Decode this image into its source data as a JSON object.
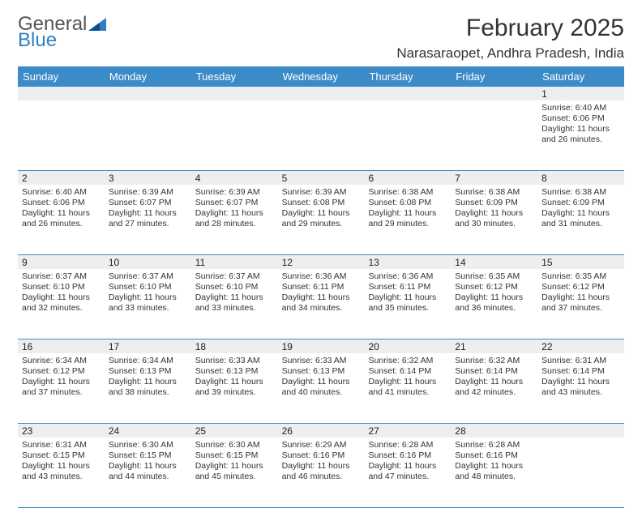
{
  "logo": {
    "word1": "General",
    "word2": "Blue"
  },
  "title": "February 2025",
  "location": "Narasaraopet, Andhra Pradesh, India",
  "header": {
    "bg": "#3b8bc8",
    "fg": "#ffffff"
  },
  "daynum_bg": "#eceeef",
  "border_color": "#3b8bc8",
  "weekdays": [
    "Sunday",
    "Monday",
    "Tuesday",
    "Wednesday",
    "Thursday",
    "Friday",
    "Saturday"
  ],
  "weeks": [
    {
      "nums": [
        "",
        "",
        "",
        "",
        "",
        "",
        "1"
      ],
      "cells": [
        null,
        null,
        null,
        null,
        null,
        null,
        {
          "sunrise": "Sunrise: 6:40 AM",
          "sunset": "Sunset: 6:06 PM",
          "day1": "Daylight: 11 hours",
          "day2": "and 26 minutes."
        }
      ]
    },
    {
      "nums": [
        "2",
        "3",
        "4",
        "5",
        "6",
        "7",
        "8"
      ],
      "cells": [
        {
          "sunrise": "Sunrise: 6:40 AM",
          "sunset": "Sunset: 6:06 PM",
          "day1": "Daylight: 11 hours",
          "day2": "and 26 minutes."
        },
        {
          "sunrise": "Sunrise: 6:39 AM",
          "sunset": "Sunset: 6:07 PM",
          "day1": "Daylight: 11 hours",
          "day2": "and 27 minutes."
        },
        {
          "sunrise": "Sunrise: 6:39 AM",
          "sunset": "Sunset: 6:07 PM",
          "day1": "Daylight: 11 hours",
          "day2": "and 28 minutes."
        },
        {
          "sunrise": "Sunrise: 6:39 AM",
          "sunset": "Sunset: 6:08 PM",
          "day1": "Daylight: 11 hours",
          "day2": "and 29 minutes."
        },
        {
          "sunrise": "Sunrise: 6:38 AM",
          "sunset": "Sunset: 6:08 PM",
          "day1": "Daylight: 11 hours",
          "day2": "and 29 minutes."
        },
        {
          "sunrise": "Sunrise: 6:38 AM",
          "sunset": "Sunset: 6:09 PM",
          "day1": "Daylight: 11 hours",
          "day2": "and 30 minutes."
        },
        {
          "sunrise": "Sunrise: 6:38 AM",
          "sunset": "Sunset: 6:09 PM",
          "day1": "Daylight: 11 hours",
          "day2": "and 31 minutes."
        }
      ]
    },
    {
      "nums": [
        "9",
        "10",
        "11",
        "12",
        "13",
        "14",
        "15"
      ],
      "cells": [
        {
          "sunrise": "Sunrise: 6:37 AM",
          "sunset": "Sunset: 6:10 PM",
          "day1": "Daylight: 11 hours",
          "day2": "and 32 minutes."
        },
        {
          "sunrise": "Sunrise: 6:37 AM",
          "sunset": "Sunset: 6:10 PM",
          "day1": "Daylight: 11 hours",
          "day2": "and 33 minutes."
        },
        {
          "sunrise": "Sunrise: 6:37 AM",
          "sunset": "Sunset: 6:10 PM",
          "day1": "Daylight: 11 hours",
          "day2": "and 33 minutes."
        },
        {
          "sunrise": "Sunrise: 6:36 AM",
          "sunset": "Sunset: 6:11 PM",
          "day1": "Daylight: 11 hours",
          "day2": "and 34 minutes."
        },
        {
          "sunrise": "Sunrise: 6:36 AM",
          "sunset": "Sunset: 6:11 PM",
          "day1": "Daylight: 11 hours",
          "day2": "and 35 minutes."
        },
        {
          "sunrise": "Sunrise: 6:35 AM",
          "sunset": "Sunset: 6:12 PM",
          "day1": "Daylight: 11 hours",
          "day2": "and 36 minutes."
        },
        {
          "sunrise": "Sunrise: 6:35 AM",
          "sunset": "Sunset: 6:12 PM",
          "day1": "Daylight: 11 hours",
          "day2": "and 37 minutes."
        }
      ]
    },
    {
      "nums": [
        "16",
        "17",
        "18",
        "19",
        "20",
        "21",
        "22"
      ],
      "cells": [
        {
          "sunrise": "Sunrise: 6:34 AM",
          "sunset": "Sunset: 6:12 PM",
          "day1": "Daylight: 11 hours",
          "day2": "and 37 minutes."
        },
        {
          "sunrise": "Sunrise: 6:34 AM",
          "sunset": "Sunset: 6:13 PM",
          "day1": "Daylight: 11 hours",
          "day2": "and 38 minutes."
        },
        {
          "sunrise": "Sunrise: 6:33 AM",
          "sunset": "Sunset: 6:13 PM",
          "day1": "Daylight: 11 hours",
          "day2": "and 39 minutes."
        },
        {
          "sunrise": "Sunrise: 6:33 AM",
          "sunset": "Sunset: 6:13 PM",
          "day1": "Daylight: 11 hours",
          "day2": "and 40 minutes."
        },
        {
          "sunrise": "Sunrise: 6:32 AM",
          "sunset": "Sunset: 6:14 PM",
          "day1": "Daylight: 11 hours",
          "day2": "and 41 minutes."
        },
        {
          "sunrise": "Sunrise: 6:32 AM",
          "sunset": "Sunset: 6:14 PM",
          "day1": "Daylight: 11 hours",
          "day2": "and 42 minutes."
        },
        {
          "sunrise": "Sunrise: 6:31 AM",
          "sunset": "Sunset: 6:14 PM",
          "day1": "Daylight: 11 hours",
          "day2": "and 43 minutes."
        }
      ]
    },
    {
      "nums": [
        "23",
        "24",
        "25",
        "26",
        "27",
        "28",
        ""
      ],
      "cells": [
        {
          "sunrise": "Sunrise: 6:31 AM",
          "sunset": "Sunset: 6:15 PM",
          "day1": "Daylight: 11 hours",
          "day2": "and 43 minutes."
        },
        {
          "sunrise": "Sunrise: 6:30 AM",
          "sunset": "Sunset: 6:15 PM",
          "day1": "Daylight: 11 hours",
          "day2": "and 44 minutes."
        },
        {
          "sunrise": "Sunrise: 6:30 AM",
          "sunset": "Sunset: 6:15 PM",
          "day1": "Daylight: 11 hours",
          "day2": "and 45 minutes."
        },
        {
          "sunrise": "Sunrise: 6:29 AM",
          "sunset": "Sunset: 6:16 PM",
          "day1": "Daylight: 11 hours",
          "day2": "and 46 minutes."
        },
        {
          "sunrise": "Sunrise: 6:28 AM",
          "sunset": "Sunset: 6:16 PM",
          "day1": "Daylight: 11 hours",
          "day2": "and 47 minutes."
        },
        {
          "sunrise": "Sunrise: 6:28 AM",
          "sunset": "Sunset: 6:16 PM",
          "day1": "Daylight: 11 hours",
          "day2": "and 48 minutes."
        },
        null
      ]
    }
  ]
}
